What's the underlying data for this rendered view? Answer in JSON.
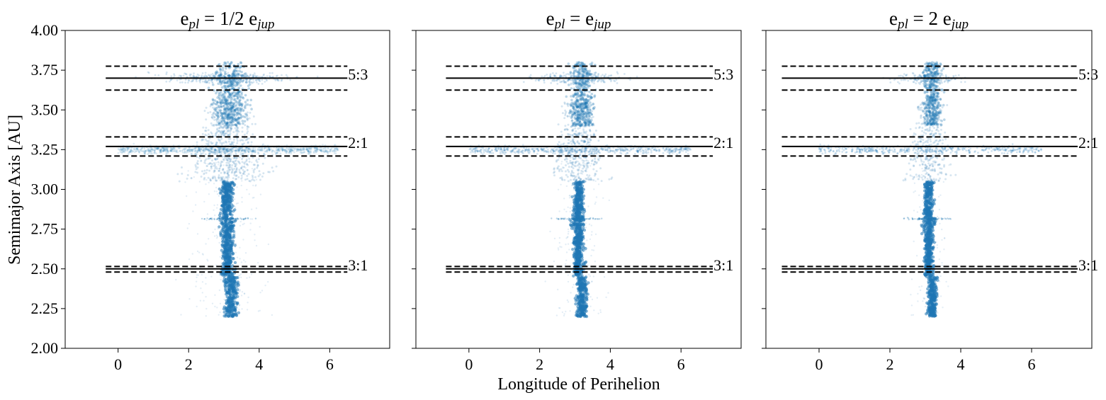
{
  "chart_data": {
    "type": "scatter",
    "ylabel": "Semimajor Axis [AU]",
    "xlabel": "Longitude of Perihelion",
    "ylim": [
      2.0,
      4.0
    ],
    "yticks": [
      2.0,
      2.25,
      2.5,
      2.75,
      3.0,
      3.25,
      3.5,
      3.75,
      4.0
    ],
    "ytick_labels": [
      "2.00",
      "2.25",
      "2.50",
      "2.75",
      "3.00",
      "3.25",
      "3.50",
      "3.75",
      "4.00"
    ],
    "xticks": [
      0,
      2,
      4,
      6
    ],
    "xtick_labels": [
      "0",
      "2",
      "4",
      "6"
    ],
    "point_color": "#1f77b4",
    "panels": [
      {
        "title_main": "e",
        "title_sub1": "pl",
        "title_mid": " = 1/2 e",
        "title_sub2": "jup",
        "xlim": [
          -1.5,
          7.7
        ],
        "line_x": [
          -0.35,
          6.5
        ],
        "spread": 1.0,
        "resonances": [
          {
            "label": "5:3",
            "a": 3.7,
            "lower": 3.625,
            "upper": 3.775
          },
          {
            "label": "2:1",
            "a": 3.27,
            "lower": 3.21,
            "upper": 3.33
          },
          {
            "label": "3:1",
            "a": 2.5,
            "lower": 2.48,
            "upper": 2.515
          }
        ]
      },
      {
        "title_main": "e",
        "title_sub1": "pl",
        "title_mid": " = e",
        "title_sub2": "jup",
        "xlim": [
          -1.5,
          7.7
        ],
        "line_x": [
          -0.65,
          6.9
        ],
        "spread": 0.6,
        "resonances": [
          {
            "label": "5:3",
            "a": 3.7,
            "lower": 3.625,
            "upper": 3.775
          },
          {
            "label": "2:1",
            "a": 3.27,
            "lower": 3.21,
            "upper": 3.33
          },
          {
            "label": "3:1",
            "a": 2.5,
            "lower": 2.48,
            "upper": 2.515
          }
        ]
      },
      {
        "title_main": "e",
        "title_sub1": "pl",
        "title_mid": " = 2 e",
        "title_sub2": "jup",
        "xlim": [
          -1.5,
          7.7
        ],
        "line_x": [
          -1.05,
          7.3
        ],
        "spread": 0.35,
        "resonances": [
          {
            "label": "5:3",
            "a": 3.7,
            "lower": 3.625,
            "upper": 3.775
          },
          {
            "label": "2:1",
            "a": 3.27,
            "lower": 3.21,
            "upper": 3.33
          },
          {
            "label": "3:1",
            "a": 2.5,
            "lower": 2.48,
            "upper": 2.515
          }
        ]
      }
    ]
  }
}
